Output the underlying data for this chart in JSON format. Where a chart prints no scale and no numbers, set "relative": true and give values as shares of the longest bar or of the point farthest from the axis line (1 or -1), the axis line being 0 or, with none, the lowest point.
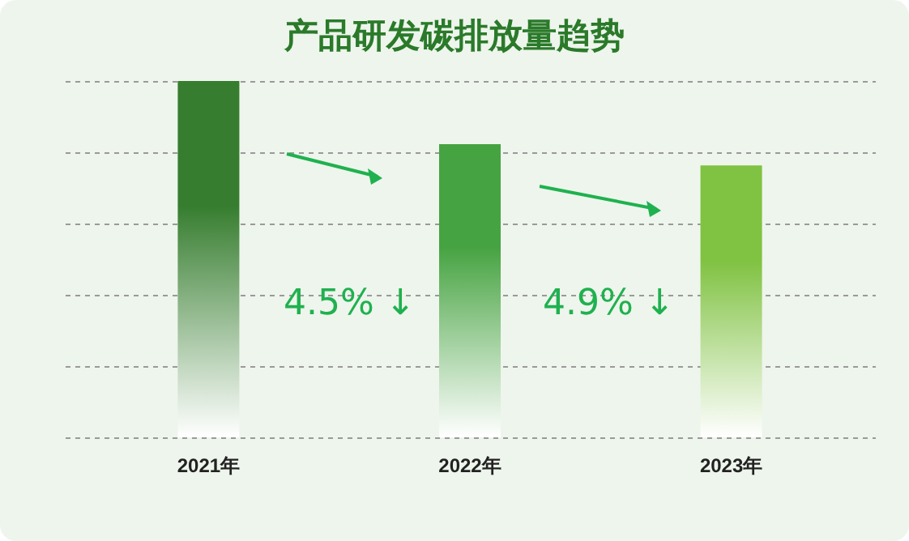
{
  "chart_data": {
    "type": "bar",
    "title": "产品研发碳排放量趋势",
    "categories": [
      "2021年",
      "2022年",
      "2023年"
    ],
    "values": [
      1,
      0.823,
      0.763
    ],
    "colors": [
      "#367d2f",
      "#46a341",
      "#80c242"
    ],
    "relative": true,
    "grid": "y",
    "annotations": [
      "4.5% ↓",
      "4.9% ↓"
    ]
  }
}
